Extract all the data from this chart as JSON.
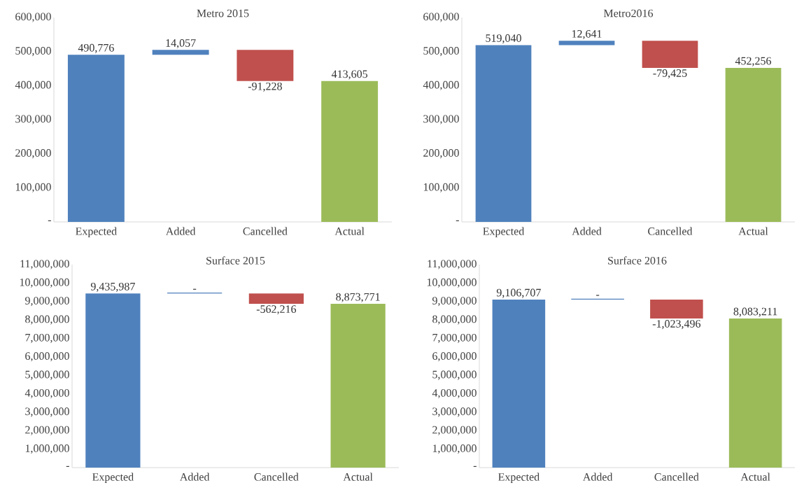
{
  "chart_data": [
    {
      "type": "bar",
      "title": "Metro 2015",
      "categories": [
        "Expected",
        "Added",
        "Cancelled",
        "Actual"
      ],
      "values": [
        490776,
        14057,
        -91228,
        413605
      ],
      "base": [
        0,
        490776,
        504833,
        0
      ],
      "colors": [
        "#4f81bd",
        "#4f81bd",
        "#c0504d",
        "#9bbb59"
      ],
      "value_labels": [
        "490,776",
        "14,057",
        "-91,228",
        "413,605"
      ],
      "ylim": [
        0,
        600000
      ],
      "yticks": [
        {
          "value": 0,
          "label": "-"
        },
        {
          "value": 100000,
          "label": "100,000"
        },
        {
          "value": 200000,
          "label": "200,000"
        },
        {
          "value": 300000,
          "label": "300,000"
        },
        {
          "value": 400000,
          "label": "400,000"
        },
        {
          "value": 500000,
          "label": "500,000"
        },
        {
          "value": 600000,
          "label": "600,000"
        }
      ]
    },
    {
      "type": "bar",
      "title": "Metro2016",
      "categories": [
        "Expected",
        "Added",
        "Cancelled",
        "Actual"
      ],
      "values": [
        519040,
        12641,
        -79425,
        452256
      ],
      "base": [
        0,
        519040,
        531681,
        0
      ],
      "colors": [
        "#4f81bd",
        "#4f81bd",
        "#c0504d",
        "#9bbb59"
      ],
      "value_labels": [
        "519,040",
        "12,641",
        "-79,425",
        "452,256"
      ],
      "ylim": [
        0,
        600000
      ],
      "yticks": [
        {
          "value": 0,
          "label": "-"
        },
        {
          "value": 100000,
          "label": "100,000"
        },
        {
          "value": 200000,
          "label": "200,000"
        },
        {
          "value": 300000,
          "label": "300,000"
        },
        {
          "value": 400000,
          "label": "400,000"
        },
        {
          "value": 500000,
          "label": "500,000"
        },
        {
          "value": 600000,
          "label": "600,000"
        }
      ]
    },
    {
      "type": "bar",
      "title": "Surface 2015",
      "categories": [
        "Expected",
        "Added",
        "Cancelled",
        "Actual"
      ],
      "values": [
        9435987,
        0,
        -562216,
        8873771
      ],
      "base": [
        0,
        9435987,
        9435987,
        0
      ],
      "colors": [
        "#4f81bd",
        "#4f81bd",
        "#c0504d",
        "#9bbb59"
      ],
      "value_labels": [
        "9,435,987",
        "-",
        "-562,216",
        "8,873,771"
      ],
      "ylim": [
        0,
        11000000
      ],
      "yticks": [
        {
          "value": 0,
          "label": "-"
        },
        {
          "value": 1000000,
          "label": "1,000,000"
        },
        {
          "value": 2000000,
          "label": "2,000,000"
        },
        {
          "value": 3000000,
          "label": "3,000,000"
        },
        {
          "value": 4000000,
          "label": "4,000,000"
        },
        {
          "value": 5000000,
          "label": "5,000,000"
        },
        {
          "value": 6000000,
          "label": "6,000,000"
        },
        {
          "value": 7000000,
          "label": "7,000,000"
        },
        {
          "value": 8000000,
          "label": "8,000,000"
        },
        {
          "value": 9000000,
          "label": "9,000,000"
        },
        {
          "value": 10000000,
          "label": "10,000,000"
        },
        {
          "value": 11000000,
          "label": "11,000,000"
        }
      ]
    },
    {
      "type": "bar",
      "title": "Surface 2016",
      "categories": [
        "Expected",
        "Added",
        "Cancelled",
        "Actual"
      ],
      "values": [
        9106707,
        0,
        -1023496,
        8083211
      ],
      "base": [
        0,
        9106707,
        9106707,
        0
      ],
      "colors": [
        "#4f81bd",
        "#4f81bd",
        "#c0504d",
        "#9bbb59"
      ],
      "value_labels": [
        "9,106,707",
        "-",
        "-1,023,496",
        "8,083,211"
      ],
      "ylim": [
        0,
        11000000
      ],
      "yticks": [
        {
          "value": 0,
          "label": "-"
        },
        {
          "value": 1000000,
          "label": "1,000,000"
        },
        {
          "value": 2000000,
          "label": "2,000,000"
        },
        {
          "value": 3000000,
          "label": "3,000,000"
        },
        {
          "value": 4000000,
          "label": "4,000,000"
        },
        {
          "value": 5000000,
          "label": "5,000,000"
        },
        {
          "value": 6000000,
          "label": "6,000,000"
        },
        {
          "value": 7000000,
          "label": "7,000,000"
        },
        {
          "value": 8000000,
          "label": "8,000,000"
        },
        {
          "value": 9000000,
          "label": "9,000,000"
        },
        {
          "value": 10000000,
          "label": "10,000,000"
        },
        {
          "value": 11000000,
          "label": "11,000,000"
        }
      ]
    }
  ]
}
